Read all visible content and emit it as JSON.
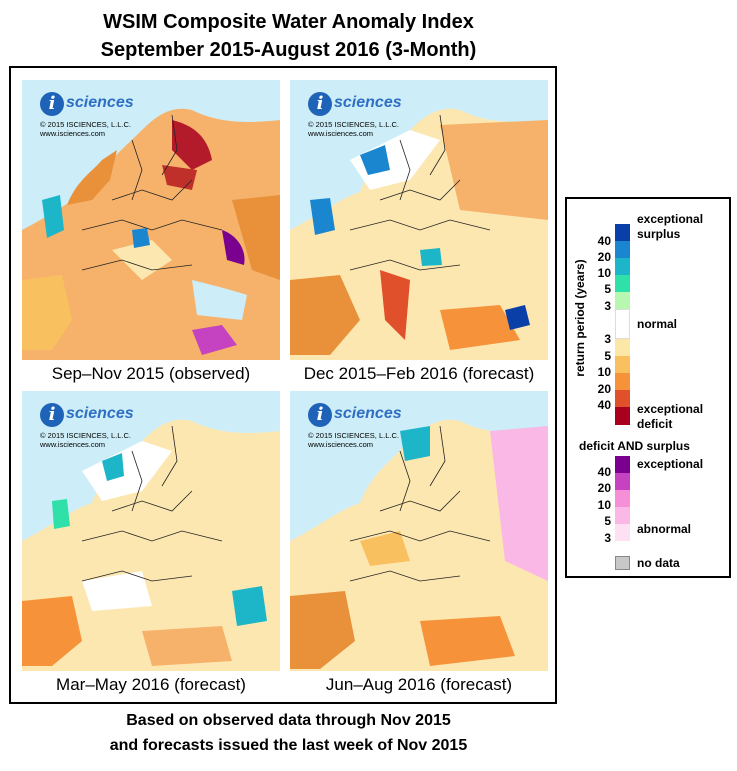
{
  "title": {
    "line1": "WSIM Composite Water Anomaly Index",
    "line2": "September 2015-August 2016 (3-Month)"
  },
  "logo": {
    "icon_letter": "i",
    "wordmark": "sciences",
    "copyright": "© 2015 ISCIENCES, L.L.C.",
    "url": "www.isciences.com"
  },
  "panels": [
    {
      "caption": "Sep–Nov 2015 (observed)"
    },
    {
      "caption": "Dec 2015–Feb 2016 (forecast)"
    },
    {
      "caption": "Mar–May 2016 (forecast)"
    },
    {
      "caption": "Jun–Aug 2016 (forecast)"
    }
  ],
  "footer": {
    "line1": "Based on observed data through Nov 2015",
    "line2": "and forecasts issued the last week of Nov 2015"
  },
  "legend": {
    "axis_label": "return period (years)",
    "surplus_label_1": "exceptional",
    "surplus_label_2": "surplus",
    "normal_label": "normal",
    "deficit_label_1": "exceptional",
    "deficit_label_2": "deficit",
    "both_title": "deficit AND surplus",
    "both_exceptional": "exceptional",
    "both_abnormal": "abnormal",
    "no_data_label": "no data",
    "surplus_ticks": [
      "40",
      "20",
      "10",
      "5",
      "3"
    ],
    "deficit_ticks": [
      "3",
      "5",
      "10",
      "20",
      "40"
    ],
    "both_ticks": [
      "40",
      "20",
      "10",
      "5",
      "3"
    ],
    "surplus_colors": [
      "#0b3fa8",
      "#1b86d0",
      "#1cb6c8",
      "#2fe0a8",
      "#b8f7b0",
      "#ffffff"
    ],
    "deficit_colors": [
      "#ffffff",
      "#fbe7a6",
      "#f9c060",
      "#f6923a",
      "#e0502a",
      "#a8001e"
    ],
    "both_colors": [
      "#7a008f",
      "#c542c0",
      "#f48fd8",
      "#f9b8e6",
      "#fde0f2"
    ],
    "no_data_color": "#c8c8c8"
  }
}
